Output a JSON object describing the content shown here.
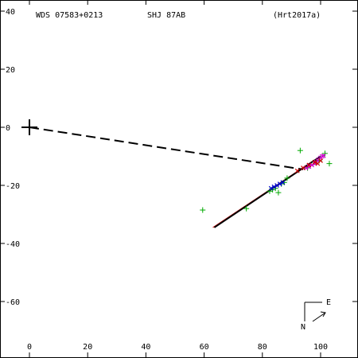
{
  "header": {
    "left": "WDS 07583+0213",
    "center": "SHJ  87AB",
    "right": "(Hrt2017a)"
  },
  "compass": {
    "east_label": "E",
    "north_label": "N"
  },
  "chart_data": {
    "type": "scatter",
    "xlim": [
      -10,
      112
    ],
    "ylim": [
      -79,
      40
    ],
    "x_ticks": [
      0,
      20,
      40,
      60,
      80,
      100
    ],
    "y_ticks": [
      40,
      20,
      0,
      -20,
      -40,
      -60
    ],
    "primary_marker": {
      "x": 0,
      "y": 0
    },
    "series": [
      {
        "kind": "points",
        "color": "#00aa00",
        "marker": "plus",
        "points": [
          [
            59.5,
            -28.5
          ],
          [
            74.5,
            -28
          ],
          [
            93,
            -8
          ],
          [
            101.5,
            -9
          ],
          [
            103,
            -12.5
          ],
          [
            82.5,
            -22
          ],
          [
            83.5,
            -21.5
          ],
          [
            84.5,
            -21
          ],
          [
            85.5,
            -22.5
          ],
          [
            86.5,
            -19.5
          ],
          [
            87.5,
            -19
          ],
          [
            88.5,
            -17.5
          ],
          [
            95.5,
            -14
          ],
          [
            98,
            -12
          ],
          [
            99.5,
            -11.5
          ]
        ]
      },
      {
        "kind": "points",
        "color": "#0000cc",
        "marker": "cross",
        "points": [
          [
            83,
            -21
          ],
          [
            84,
            -20.5
          ],
          [
            85,
            -20
          ],
          [
            86,
            -19.5
          ],
          [
            87,
            -19
          ]
        ]
      },
      {
        "kind": "points",
        "color": "#cc00cc",
        "marker": "cross",
        "points": [
          [
            95,
            -14
          ],
          [
            96,
            -13.5
          ],
          [
            97,
            -13
          ],
          [
            98,
            -12.5
          ],
          [
            98.5,
            -12
          ],
          [
            99,
            -11.5
          ],
          [
            99.5,
            -11
          ],
          [
            100,
            -10.5
          ],
          [
            100.5,
            -10
          ],
          [
            101,
            -9.8
          ]
        ]
      },
      {
        "kind": "points",
        "color": "#cc0000",
        "marker": "cross",
        "points": [
          [
            92,
            -15
          ],
          [
            94,
            -14
          ],
          [
            96,
            -13
          ],
          [
            98,
            -12
          ],
          [
            99,
            -12.5
          ],
          [
            100,
            -11.5
          ]
        ]
      }
    ],
    "lines": [
      {
        "from": [
          0,
          0
        ],
        "to": [
          94,
          -14.5
        ],
        "color": "#000000",
        "dash": "dashed"
      },
      {
        "from": [
          63,
          -34.5
        ],
        "to": [
          99,
          -10.5
        ],
        "color": "#cc0000",
        "dash": "solid"
      },
      {
        "from": [
          63.5,
          -34.5
        ],
        "to": [
          100,
          -10
        ],
        "color": "#000000",
        "dash": "solid"
      }
    ]
  }
}
